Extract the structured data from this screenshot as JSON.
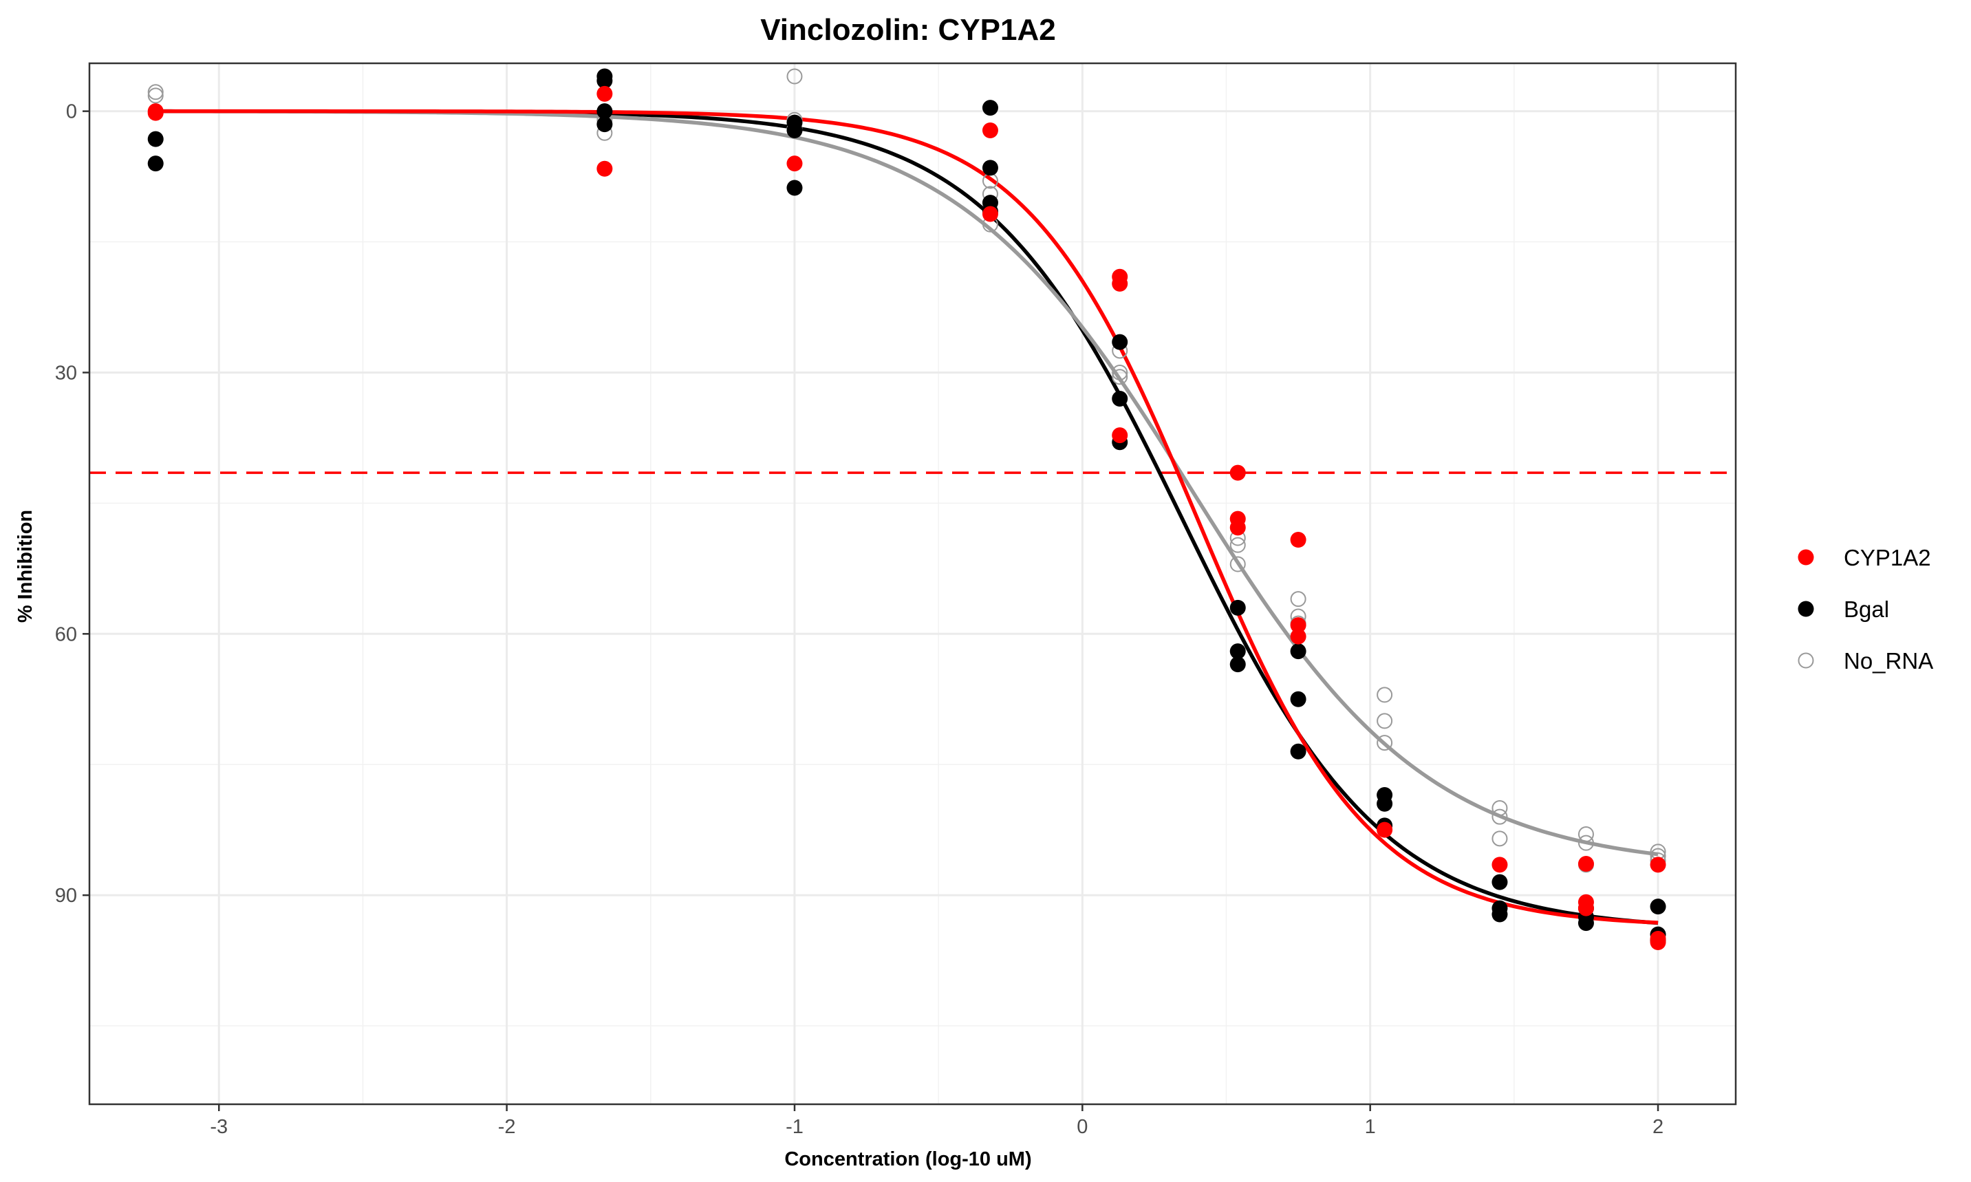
{
  "chart_data": {
    "type": "scatter",
    "title": "Vinclozolin: CYP1A2",
    "xlabel": "Concentration (log-10 uM)",
    "ylabel": "% Inhibition",
    "xlim": [
      -3.45,
      2.27
    ],
    "ylim": [
      -5.5,
      114
    ],
    "y_reversed": true,
    "x_ticks": [
      -3,
      -2,
      -1,
      0,
      1,
      2
    ],
    "x_tick_labels": [
      "-3",
      "-2",
      "-1",
      "0",
      "1",
      "2"
    ],
    "y_ticks": [
      0,
      30,
      60,
      90
    ],
    "y_tick_labels": [
      "0",
      "30",
      "60",
      "90"
    ],
    "grid": true,
    "legend_position": "right",
    "reference_line": {
      "y": 41.5,
      "style": "dashed",
      "color": "#ff0000"
    },
    "series": [
      {
        "name": "CYP1A2",
        "color": "#ff0000",
        "marker": "filled-circle",
        "points": [
          [
            -3.22,
            0.2
          ],
          [
            -3.22,
            0.0
          ],
          [
            -1.66,
            -2.0
          ],
          [
            -1.66,
            6.6
          ],
          [
            -1.0,
            6.0
          ],
          [
            -0.32,
            2.2
          ],
          [
            -0.32,
            11.8
          ],
          [
            0.13,
            19.0
          ],
          [
            0.13,
            19.8
          ],
          [
            0.13,
            37.2
          ],
          [
            0.54,
            41.5
          ],
          [
            0.54,
            46.8
          ],
          [
            0.54,
            47.8
          ],
          [
            0.75,
            49.2
          ],
          [
            0.75,
            60.3
          ],
          [
            0.75,
            59.0
          ],
          [
            1.05,
            82.5
          ],
          [
            1.45,
            86.5
          ],
          [
            1.75,
            86.4
          ],
          [
            1.75,
            90.8
          ],
          [
            1.75,
            91.5
          ],
          [
            2.0,
            86.5
          ],
          [
            2.0,
            95.0
          ],
          [
            2.0,
            95.4
          ]
        ],
        "fit": {
          "top": 0.0,
          "bottom": 93.6,
          "log_ic50": 0.4,
          "hill": 1.45
        }
      },
      {
        "name": "Bgal",
        "color": "#000000",
        "marker": "filled-circle",
        "points": [
          [
            -3.22,
            3.2
          ],
          [
            -3.22,
            6.0
          ],
          [
            -1.66,
            -4.0
          ],
          [
            -1.66,
            -3.5
          ],
          [
            -1.66,
            0.0
          ],
          [
            -1.66,
            1.5
          ],
          [
            -1.0,
            8.8
          ],
          [
            -1.0,
            1.3
          ],
          [
            -1.0,
            2.2
          ],
          [
            -0.32,
            -0.4
          ],
          [
            -0.32,
            6.5
          ],
          [
            -0.32,
            10.5
          ],
          [
            -0.32,
            11.5
          ],
          [
            0.13,
            26.5
          ],
          [
            0.13,
            33.0
          ],
          [
            0.13,
            38.0
          ],
          [
            0.54,
            57.0
          ],
          [
            0.54,
            62.0
          ],
          [
            0.54,
            63.5
          ],
          [
            0.75,
            62.0
          ],
          [
            0.75,
            67.5
          ],
          [
            0.75,
            73.5
          ],
          [
            1.05,
            78.5
          ],
          [
            1.05,
            79.5
          ],
          [
            1.05,
            82.0
          ],
          [
            1.45,
            88.5
          ],
          [
            1.45,
            91.5
          ],
          [
            1.45,
            92.2
          ],
          [
            1.75,
            91.5
          ],
          [
            1.75,
            92.5
          ],
          [
            1.75,
            93.2
          ],
          [
            2.0,
            91.3
          ],
          [
            2.0,
            94.5
          ],
          [
            2.0,
            95.2
          ]
        ],
        "fit": {
          "top": 0.0,
          "bottom": 94.0,
          "log_ic50": 0.35,
          "hill": 1.25
        }
      },
      {
        "name": "No_RNA",
        "color": "#999999",
        "marker": "open-circle",
        "points": [
          [
            -3.22,
            -2.2
          ],
          [
            -3.22,
            -1.8
          ],
          [
            -1.66,
            2.5
          ],
          [
            -1.66,
            1.0
          ],
          [
            -1.0,
            -4.0
          ],
          [
            -1.0,
            1.0
          ],
          [
            -1.0,
            2.0
          ],
          [
            -0.32,
            8.0
          ],
          [
            -0.32,
            9.5
          ],
          [
            -0.32,
            13.0
          ],
          [
            0.13,
            27.5
          ],
          [
            0.13,
            30.0
          ],
          [
            0.13,
            30.5
          ],
          [
            0.54,
            49.0
          ],
          [
            0.54,
            49.8
          ],
          [
            0.54,
            52.0
          ],
          [
            0.75,
            56.0
          ],
          [
            0.75,
            58.0
          ],
          [
            0.75,
            58.8
          ],
          [
            1.05,
            67.0
          ],
          [
            1.05,
            70.0
          ],
          [
            1.05,
            72.5
          ],
          [
            1.45,
            80.0
          ],
          [
            1.45,
            81.0
          ],
          [
            1.45,
            83.5
          ],
          [
            1.75,
            83.0
          ],
          [
            1.75,
            84.0
          ],
          [
            1.75,
            86.5
          ],
          [
            2.0,
            85.0
          ],
          [
            2.0,
            85.5
          ],
          [
            2.0,
            86.0
          ]
        ],
        "fit": {
          "top": 0.0,
          "bottom": 87.0,
          "log_ic50": 0.38,
          "hill": 1.05
        }
      }
    ]
  }
}
